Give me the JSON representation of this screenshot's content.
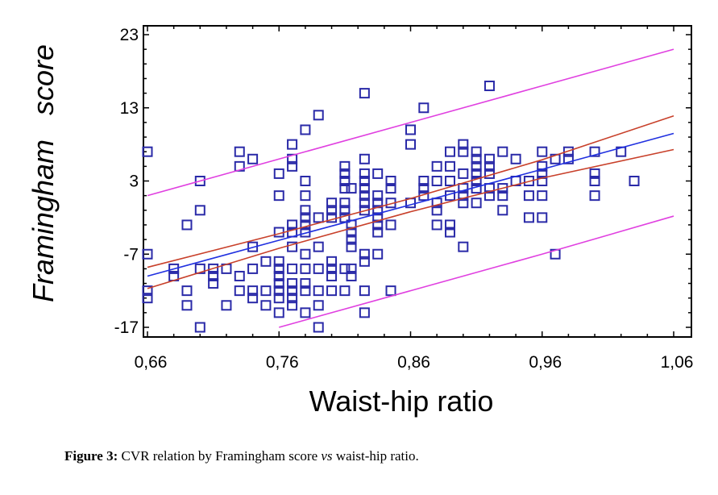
{
  "chart_data": {
    "type": "scatter",
    "title": "",
    "xlabel": "Waist-hip ratio",
    "ylabel": "Framingham   score",
    "xlim": [
      0.66,
      1.06
    ],
    "ylim": [
      -17,
      23
    ],
    "x_ticks": [
      0.66,
      0.76,
      0.86,
      0.96,
      1.06
    ],
    "x_tick_labels": [
      "0,66",
      "0,76",
      "0,86",
      "0,96",
      "1,06"
    ],
    "y_ticks": [
      23,
      13,
      3,
      -7,
      -17
    ],
    "y_tick_labels": [
      "23",
      "13",
      "3",
      "-7",
      "-17"
    ],
    "grid": false,
    "colors": {
      "points": "#2a2aa8",
      "regression": "#2030e0",
      "confidence": "#c8402a",
      "prediction": "#e040e0"
    },
    "points": [
      [
        0.66,
        7
      ],
      [
        0.66,
        -7
      ],
      [
        0.66,
        -12
      ],
      [
        0.66,
        -13
      ],
      [
        0.68,
        -9
      ],
      [
        0.68,
        -10
      ],
      [
        0.69,
        -3
      ],
      [
        0.69,
        -12
      ],
      [
        0.69,
        -14
      ],
      [
        0.7,
        3
      ],
      [
        0.7,
        -1
      ],
      [
        0.7,
        -9
      ],
      [
        0.7,
        -17
      ],
      [
        0.71,
        -9
      ],
      [
        0.71,
        -10
      ],
      [
        0.71,
        -11
      ],
      [
        0.72,
        -9
      ],
      [
        0.72,
        -14
      ],
      [
        0.73,
        7
      ],
      [
        0.73,
        5
      ],
      [
        0.73,
        -10
      ],
      [
        0.73,
        -12
      ],
      [
        0.74,
        6
      ],
      [
        0.74,
        -6
      ],
      [
        0.74,
        -9
      ],
      [
        0.74,
        -12
      ],
      [
        0.74,
        -13
      ],
      [
        0.75,
        -8
      ],
      [
        0.75,
        -12
      ],
      [
        0.75,
        -14
      ],
      [
        0.76,
        4
      ],
      [
        0.76,
        1
      ],
      [
        0.76,
        -4
      ],
      [
        0.76,
        -8
      ],
      [
        0.76,
        -9
      ],
      [
        0.76,
        -10
      ],
      [
        0.76,
        -11
      ],
      [
        0.76,
        -12
      ],
      [
        0.76,
        -13
      ],
      [
        0.76,
        -15
      ],
      [
        0.77,
        8
      ],
      [
        0.77,
        6
      ],
      [
        0.77,
        5
      ],
      [
        0.77,
        -3
      ],
      [
        0.77,
        -4
      ],
      [
        0.77,
        -6
      ],
      [
        0.77,
        -9
      ],
      [
        0.77,
        -11
      ],
      [
        0.77,
        -12
      ],
      [
        0.77,
        -13
      ],
      [
        0.77,
        -14
      ],
      [
        0.78,
        10
      ],
      [
        0.78,
        3
      ],
      [
        0.78,
        1
      ],
      [
        0.78,
        -1
      ],
      [
        0.78,
        -2
      ],
      [
        0.78,
        -3
      ],
      [
        0.78,
        -4
      ],
      [
        0.78,
        -7
      ],
      [
        0.78,
        -9
      ],
      [
        0.78,
        -11
      ],
      [
        0.78,
        -12
      ],
      [
        0.78,
        -15
      ],
      [
        0.79,
        12
      ],
      [
        0.79,
        -2
      ],
      [
        0.79,
        -6
      ],
      [
        0.79,
        -9
      ],
      [
        0.79,
        -12
      ],
      [
        0.79,
        -14
      ],
      [
        0.79,
        -17
      ],
      [
        0.8,
        0
      ],
      [
        0.8,
        -1
      ],
      [
        0.8,
        -2
      ],
      [
        0.8,
        -8
      ],
      [
        0.8,
        -9
      ],
      [
        0.8,
        -10
      ],
      [
        0.8,
        -12
      ],
      [
        0.81,
        5
      ],
      [
        0.81,
        4
      ],
      [
        0.81,
        3
      ],
      [
        0.81,
        2
      ],
      [
        0.81,
        0
      ],
      [
        0.81,
        -1
      ],
      [
        0.81,
        -2
      ],
      [
        0.81,
        -9
      ],
      [
        0.81,
        -12
      ],
      [
        0.815,
        2
      ],
      [
        0.815,
        -3
      ],
      [
        0.815,
        -4
      ],
      [
        0.815,
        -5
      ],
      [
        0.815,
        -6
      ],
      [
        0.815,
        -9
      ],
      [
        0.815,
        -10
      ],
      [
        0.825,
        15
      ],
      [
        0.825,
        6
      ],
      [
        0.825,
        4
      ],
      [
        0.825,
        3
      ],
      [
        0.825,
        2
      ],
      [
        0.825,
        1
      ],
      [
        0.825,
        0
      ],
      [
        0.825,
        -1
      ],
      [
        0.825,
        -7
      ],
      [
        0.825,
        -8
      ],
      [
        0.825,
        -12
      ],
      [
        0.825,
        -15
      ],
      [
        0.835,
        4
      ],
      [
        0.835,
        1
      ],
      [
        0.835,
        0
      ],
      [
        0.835,
        -1
      ],
      [
        0.835,
        -2
      ],
      [
        0.835,
        -3
      ],
      [
        0.835,
        -4
      ],
      [
        0.835,
        -7
      ],
      [
        0.845,
        3
      ],
      [
        0.845,
        2
      ],
      [
        0.845,
        0
      ],
      [
        0.845,
        -3
      ],
      [
        0.845,
        -12
      ],
      [
        0.86,
        10
      ],
      [
        0.86,
        8
      ],
      [
        0.86,
        0
      ],
      [
        0.87,
        13
      ],
      [
        0.87,
        3
      ],
      [
        0.87,
        2
      ],
      [
        0.87,
        1
      ],
      [
        0.88,
        5
      ],
      [
        0.88,
        3
      ],
      [
        0.88,
        0
      ],
      [
        0.88,
        -1
      ],
      [
        0.88,
        -3
      ],
      [
        0.89,
        7
      ],
      [
        0.89,
        5
      ],
      [
        0.89,
        3
      ],
      [
        0.89,
        1
      ],
      [
        0.89,
        -3
      ],
      [
        0.89,
        -4
      ],
      [
        0.9,
        8
      ],
      [
        0.9,
        7
      ],
      [
        0.9,
        4
      ],
      [
        0.9,
        2
      ],
      [
        0.9,
        1
      ],
      [
        0.9,
        0
      ],
      [
        0.9,
        -6
      ],
      [
        0.91,
        7
      ],
      [
        0.91,
        6
      ],
      [
        0.91,
        5
      ],
      [
        0.91,
        4
      ],
      [
        0.91,
        3
      ],
      [
        0.91,
        2
      ],
      [
        0.91,
        0
      ],
      [
        0.92,
        16
      ],
      [
        0.92,
        6
      ],
      [
        0.92,
        5
      ],
      [
        0.92,
        4
      ],
      [
        0.92,
        2
      ],
      [
        0.92,
        1
      ],
      [
        0.93,
        7
      ],
      [
        0.93,
        2
      ],
      [
        0.93,
        1
      ],
      [
        0.93,
        -1
      ],
      [
        0.94,
        6
      ],
      [
        0.94,
        3
      ],
      [
        0.95,
        3
      ],
      [
        0.95,
        1
      ],
      [
        0.95,
        -2
      ],
      [
        0.96,
        7
      ],
      [
        0.96,
        5
      ],
      [
        0.96,
        4
      ],
      [
        0.96,
        3
      ],
      [
        0.96,
        1
      ],
      [
        0.96,
        -2
      ],
      [
        0.97,
        6
      ],
      [
        0.97,
        -7
      ],
      [
        0.98,
        7
      ],
      [
        0.98,
        6
      ],
      [
        1.0,
        7
      ],
      [
        1.0,
        4
      ],
      [
        1.0,
        3
      ],
      [
        1.0,
        1
      ],
      [
        1.02,
        7
      ],
      [
        1.03,
        3
      ]
    ],
    "lines": [
      {
        "name": "regression",
        "x": [
          0.66,
          0.76,
          0.86,
          0.96,
          1.06
        ],
        "y": [
          -10,
          -5.1,
          -0.25,
          4.6,
          9.5
        ]
      },
      {
        "name": "confidence-upper",
        "x": [
          0.66,
          0.76,
          0.86,
          0.96,
          1.06
        ],
        "y": [
          -8.8,
          -4.2,
          0.6,
          5.9,
          11.9
        ]
      },
      {
        "name": "confidence-lower",
        "x": [
          0.66,
          0.76,
          0.86,
          0.96,
          1.06
        ],
        "y": [
          -11.7,
          -6.2,
          -1.2,
          3.4,
          7.3
        ]
      },
      {
        "name": "prediction-upper",
        "x": [
          0.66,
          0.76,
          0.86,
          0.96,
          1.06
        ],
        "y": [
          1,
          6,
          11,
          16,
          21
        ]
      },
      {
        "name": "prediction-lower",
        "x": [
          0.76,
          0.86,
          0.96,
          1.06
        ],
        "y": [
          -17,
          -12,
          -7,
          -1.8
        ]
      }
    ]
  },
  "caption": {
    "label": "Figure 3:",
    "text_before": " CVR relation by Framingham score ",
    "italic": "vs",
    "text_after": " waist-hip ratio."
  }
}
